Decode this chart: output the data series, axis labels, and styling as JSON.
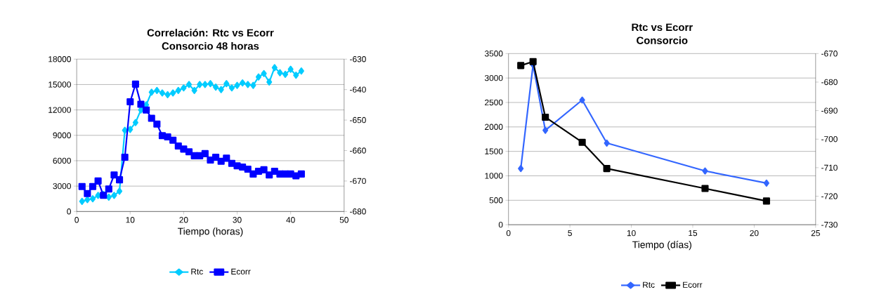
{
  "chart_data": [
    {
      "type": "line",
      "title": "Correlación: Rtc vs Ecorr",
      "subtitle": "Consorcio 48 horas",
      "xlabel": "Tiempo (horas)",
      "x": [
        1,
        2,
        3,
        4,
        5,
        6,
        7,
        8,
        9,
        10,
        11,
        12,
        13,
        14,
        15,
        16,
        17,
        18,
        19,
        20,
        21,
        22,
        23,
        24,
        25,
        26,
        27,
        28,
        29,
        30,
        31,
        32,
        33,
        34,
        35,
        36,
        37,
        38,
        39,
        40,
        41,
        42
      ],
      "series": [
        {
          "name": "Rtc",
          "color": "#00ccff",
          "marker": "diamond",
          "values": [
            1200,
            1400,
            1500,
            1900,
            2000,
            1700,
            1900,
            2400,
            9600,
            9700,
            10500,
            12000,
            12600,
            14100,
            14300,
            14000,
            13800,
            14000,
            14300,
            14600,
            15000,
            14300,
            15000,
            15000,
            15100,
            14700,
            14400,
            15100,
            14600,
            14900,
            15200,
            15000,
            14900,
            15900,
            16300,
            15300,
            17000,
            16400,
            16200,
            16800,
            16100,
            16600
          ]
        },
        {
          "name": "Ecorr",
          "color": "#0000ff",
          "marker": "square",
          "axis": "y2",
          "values": [
            -671.8,
            -674.1,
            -671.8,
            -670,
            -674.7,
            -672.6,
            -668,
            -669.6,
            -662.2,
            -644,
            -638.2,
            -644.8,
            -646.7,
            -649.4,
            -651.3,
            -655.1,
            -655.5,
            -656.6,
            -658.5,
            -659.5,
            -660.4,
            -661.7,
            -661.7,
            -661,
            -663.1,
            -662.2,
            -663.5,
            -662.5,
            -664.2,
            -665,
            -665.4,
            -666.1,
            -667.7,
            -666.8,
            -666.3,
            -668,
            -666.8,
            -667.7,
            -667.7,
            -667.7,
            -668.3,
            -667.7
          ]
        }
      ],
      "xlim": [
        0,
        50
      ],
      "xticks": [
        0,
        10,
        20,
        30,
        40,
        50
      ],
      "ylim": [
        0,
        18000
      ],
      "yticks": [
        0,
        3000,
        6000,
        9000,
        12000,
        15000,
        18000
      ],
      "y2lim": [
        -680,
        -630
      ],
      "y2ticks": [
        -680,
        -670,
        -660,
        -650,
        -640,
        -630
      ],
      "grid": "y",
      "legend": "bottom"
    },
    {
      "type": "line",
      "title": "Rtc vs Ecorr",
      "subtitle": "Consorcio",
      "xlabel": "Tiempo (días)",
      "x": [
        1,
        2,
        3,
        6,
        8,
        16,
        21
      ],
      "series": [
        {
          "name": "Rtc",
          "color": "#3366ff",
          "marker": "diamond",
          "values": [
            1150,
            3270,
            1930,
            2550,
            1670,
            1100,
            850
          ]
        },
        {
          "name": "Ecorr",
          "color": "#000000",
          "marker": "square",
          "axis": "y2",
          "values": [
            -674.2,
            -672.8,
            -692.3,
            -701.1,
            -710.3,
            -717.3,
            -721.7
          ]
        }
      ],
      "xlim": [
        0,
        25
      ],
      "xticks": [
        0,
        5,
        10,
        15,
        20,
        25
      ],
      "ylim": [
        0,
        3500
      ],
      "yticks": [
        0,
        500,
        1000,
        1500,
        2000,
        2500,
        3000,
        3500
      ],
      "y2lim": [
        -730,
        -670
      ],
      "y2ticks": [
        -730,
        -720,
        -710,
        -700,
        -690,
        -680,
        -670
      ],
      "grid": "y",
      "legend": "bottom"
    }
  ]
}
